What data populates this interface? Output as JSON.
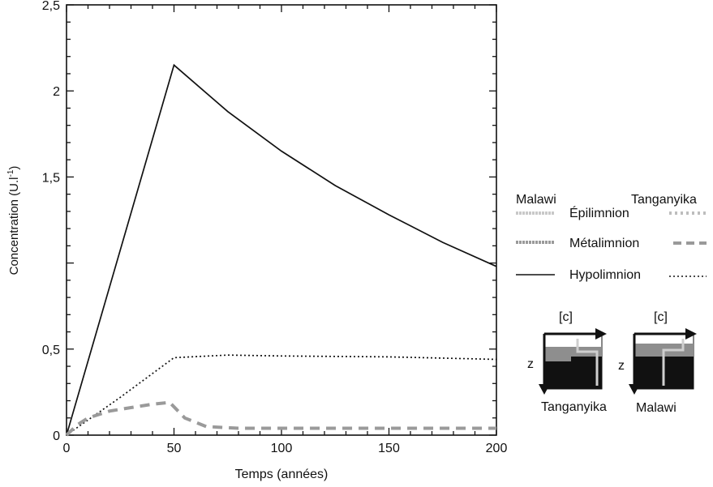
{
  "chart_data": {
    "type": "line",
    "xlabel": "Temps (années)",
    "ylabel_main": "Concentration (U.l",
    "ylabel_sup": "-1",
    "ylabel_close": ")",
    "xlim": [
      0,
      200
    ],
    "ylim": [
      0,
      2.5
    ],
    "xticks": [
      0,
      50,
      100,
      150,
      200
    ],
    "xtick_labels": [
      "0",
      "50",
      "100",
      "150",
      "200"
    ],
    "yticks": [
      0,
      0.5,
      1.5,
      2,
      2.5
    ],
    "ytick_labels": [
      "0",
      "0,5",
      "1,5",
      "2",
      "2,5"
    ],
    "grid": false,
    "series": [
      {
        "lake": "Malawi",
        "layer": "Hypolimnion",
        "style": "solid",
        "x": [
          0,
          50,
          75,
          100,
          125,
          150,
          175,
          200
        ],
        "y": [
          0,
          2.15,
          1.88,
          1.65,
          1.45,
          1.28,
          1.12,
          0.98
        ]
      },
      {
        "lake": "Tanganyika",
        "layer": "Hypolimnion",
        "style": "dotted",
        "x": [
          0,
          25,
          50,
          75,
          100,
          150,
          200
        ],
        "y": [
          0,
          0.22,
          0.45,
          0.465,
          0.46,
          0.455,
          0.44
        ]
      },
      {
        "lake": "Malawi",
        "layer": "Métalimnion",
        "style": "thick-dashed",
        "x": [
          0,
          5,
          10,
          20,
          30,
          40,
          48,
          55,
          65,
          80,
          100,
          150,
          200
        ],
        "y": [
          0,
          0.06,
          0.1,
          0.14,
          0.16,
          0.18,
          0.19,
          0.1,
          0.05,
          0.04,
          0.04,
          0.04,
          0.04
        ]
      }
    ]
  },
  "legend": {
    "header_left": "Malawi",
    "header_right": "Tanganyika",
    "rows": [
      {
        "label": "Épilimnion"
      },
      {
        "label": "Métalimnion"
      },
      {
        "label": "Hypolimnion"
      }
    ]
  },
  "schematics": {
    "axis_c": "[c]",
    "axis_z": "z",
    "left_caption": "Tanganyika",
    "right_caption": "Malawi"
  }
}
